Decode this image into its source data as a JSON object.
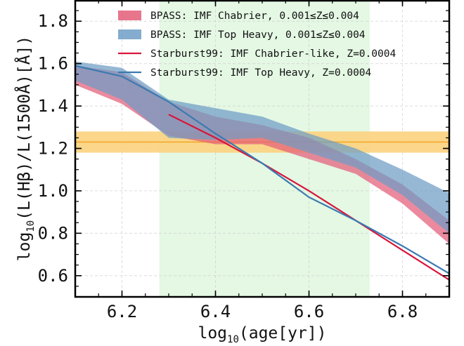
{
  "chart_data": {
    "type": "area",
    "xlabel": "log10(age[yr])",
    "xlabel_parts": {
      "main": "log",
      "sub": "10",
      "rest": "(age[yr])"
    },
    "ylabel": "log10(L(Hβ)/L(1500Å)[Å])",
    "ylabel_parts": {
      "main": "log",
      "sub": "10",
      "rest": "(L(Hβ)/L(1500Å)[Å])"
    },
    "xlim": [
      6.1,
      6.9
    ],
    "ylim": [
      0.5,
      1.9
    ],
    "xticks": [
      "6.2",
      "6.4",
      "6.6",
      "6.8"
    ],
    "yticks": [
      "0.6",
      "0.8",
      "1.0",
      "1.2",
      "1.4",
      "1.6",
      "1.8"
    ],
    "grid": true,
    "legend_position": "top-right",
    "shaded_x_region": {
      "x": [
        6.28,
        6.73
      ],
      "color": "#e4f8e4"
    },
    "horizontal_band": {
      "y": [
        1.18,
        1.28
      ],
      "center": 1.23,
      "color": "#fbd27e",
      "line_color": "#f5a623"
    },
    "series": [
      {
        "name": "BPASS: IMF Chabrier, 0.001≤Z≤0.004",
        "kind": "band",
        "color": "#e35d78",
        "x": [
          6.1,
          6.2,
          6.3,
          6.4,
          6.5,
          6.6,
          6.7,
          6.8,
          6.9
        ],
        "lower": [
          1.5,
          1.41,
          1.26,
          1.22,
          1.22,
          1.15,
          1.08,
          0.94,
          0.75
        ],
        "upper": [
          1.59,
          1.56,
          1.42,
          1.35,
          1.31,
          1.25,
          1.15,
          1.03,
          0.86
        ]
      },
      {
        "name": "BPASS: IMF Top Heavy, 0.001≤Z≤0.004",
        "kind": "band",
        "color": "#6d9dc5",
        "x": [
          6.1,
          6.2,
          6.3,
          6.4,
          6.5,
          6.6,
          6.7,
          6.8,
          6.9
        ],
        "lower": [
          1.52,
          1.43,
          1.25,
          1.24,
          1.25,
          1.18,
          1.11,
          0.98,
          0.8
        ],
        "upper": [
          1.61,
          1.58,
          1.43,
          1.39,
          1.35,
          1.27,
          1.2,
          1.1,
          0.99
        ]
      },
      {
        "name": "Starburst99: IMF Chabrier-like, Z=0.0004",
        "kind": "line",
        "color": "#d6163c",
        "x": [
          6.3,
          6.4,
          6.5,
          6.6,
          6.7,
          6.8,
          6.9
        ],
        "y": [
          1.36,
          1.25,
          1.13,
          1.0,
          0.86,
          0.72,
          0.58
        ]
      },
      {
        "name": "Starburst99: IMF Top Heavy, Z=0.0004",
        "kind": "line",
        "color": "#3c79b0",
        "x": [
          6.1,
          6.2,
          6.3,
          6.4,
          6.5,
          6.6,
          6.7,
          6.8,
          6.9
        ],
        "y": [
          1.59,
          1.54,
          1.42,
          1.27,
          1.13,
          0.97,
          0.86,
          0.74,
          0.61
        ]
      }
    ]
  }
}
